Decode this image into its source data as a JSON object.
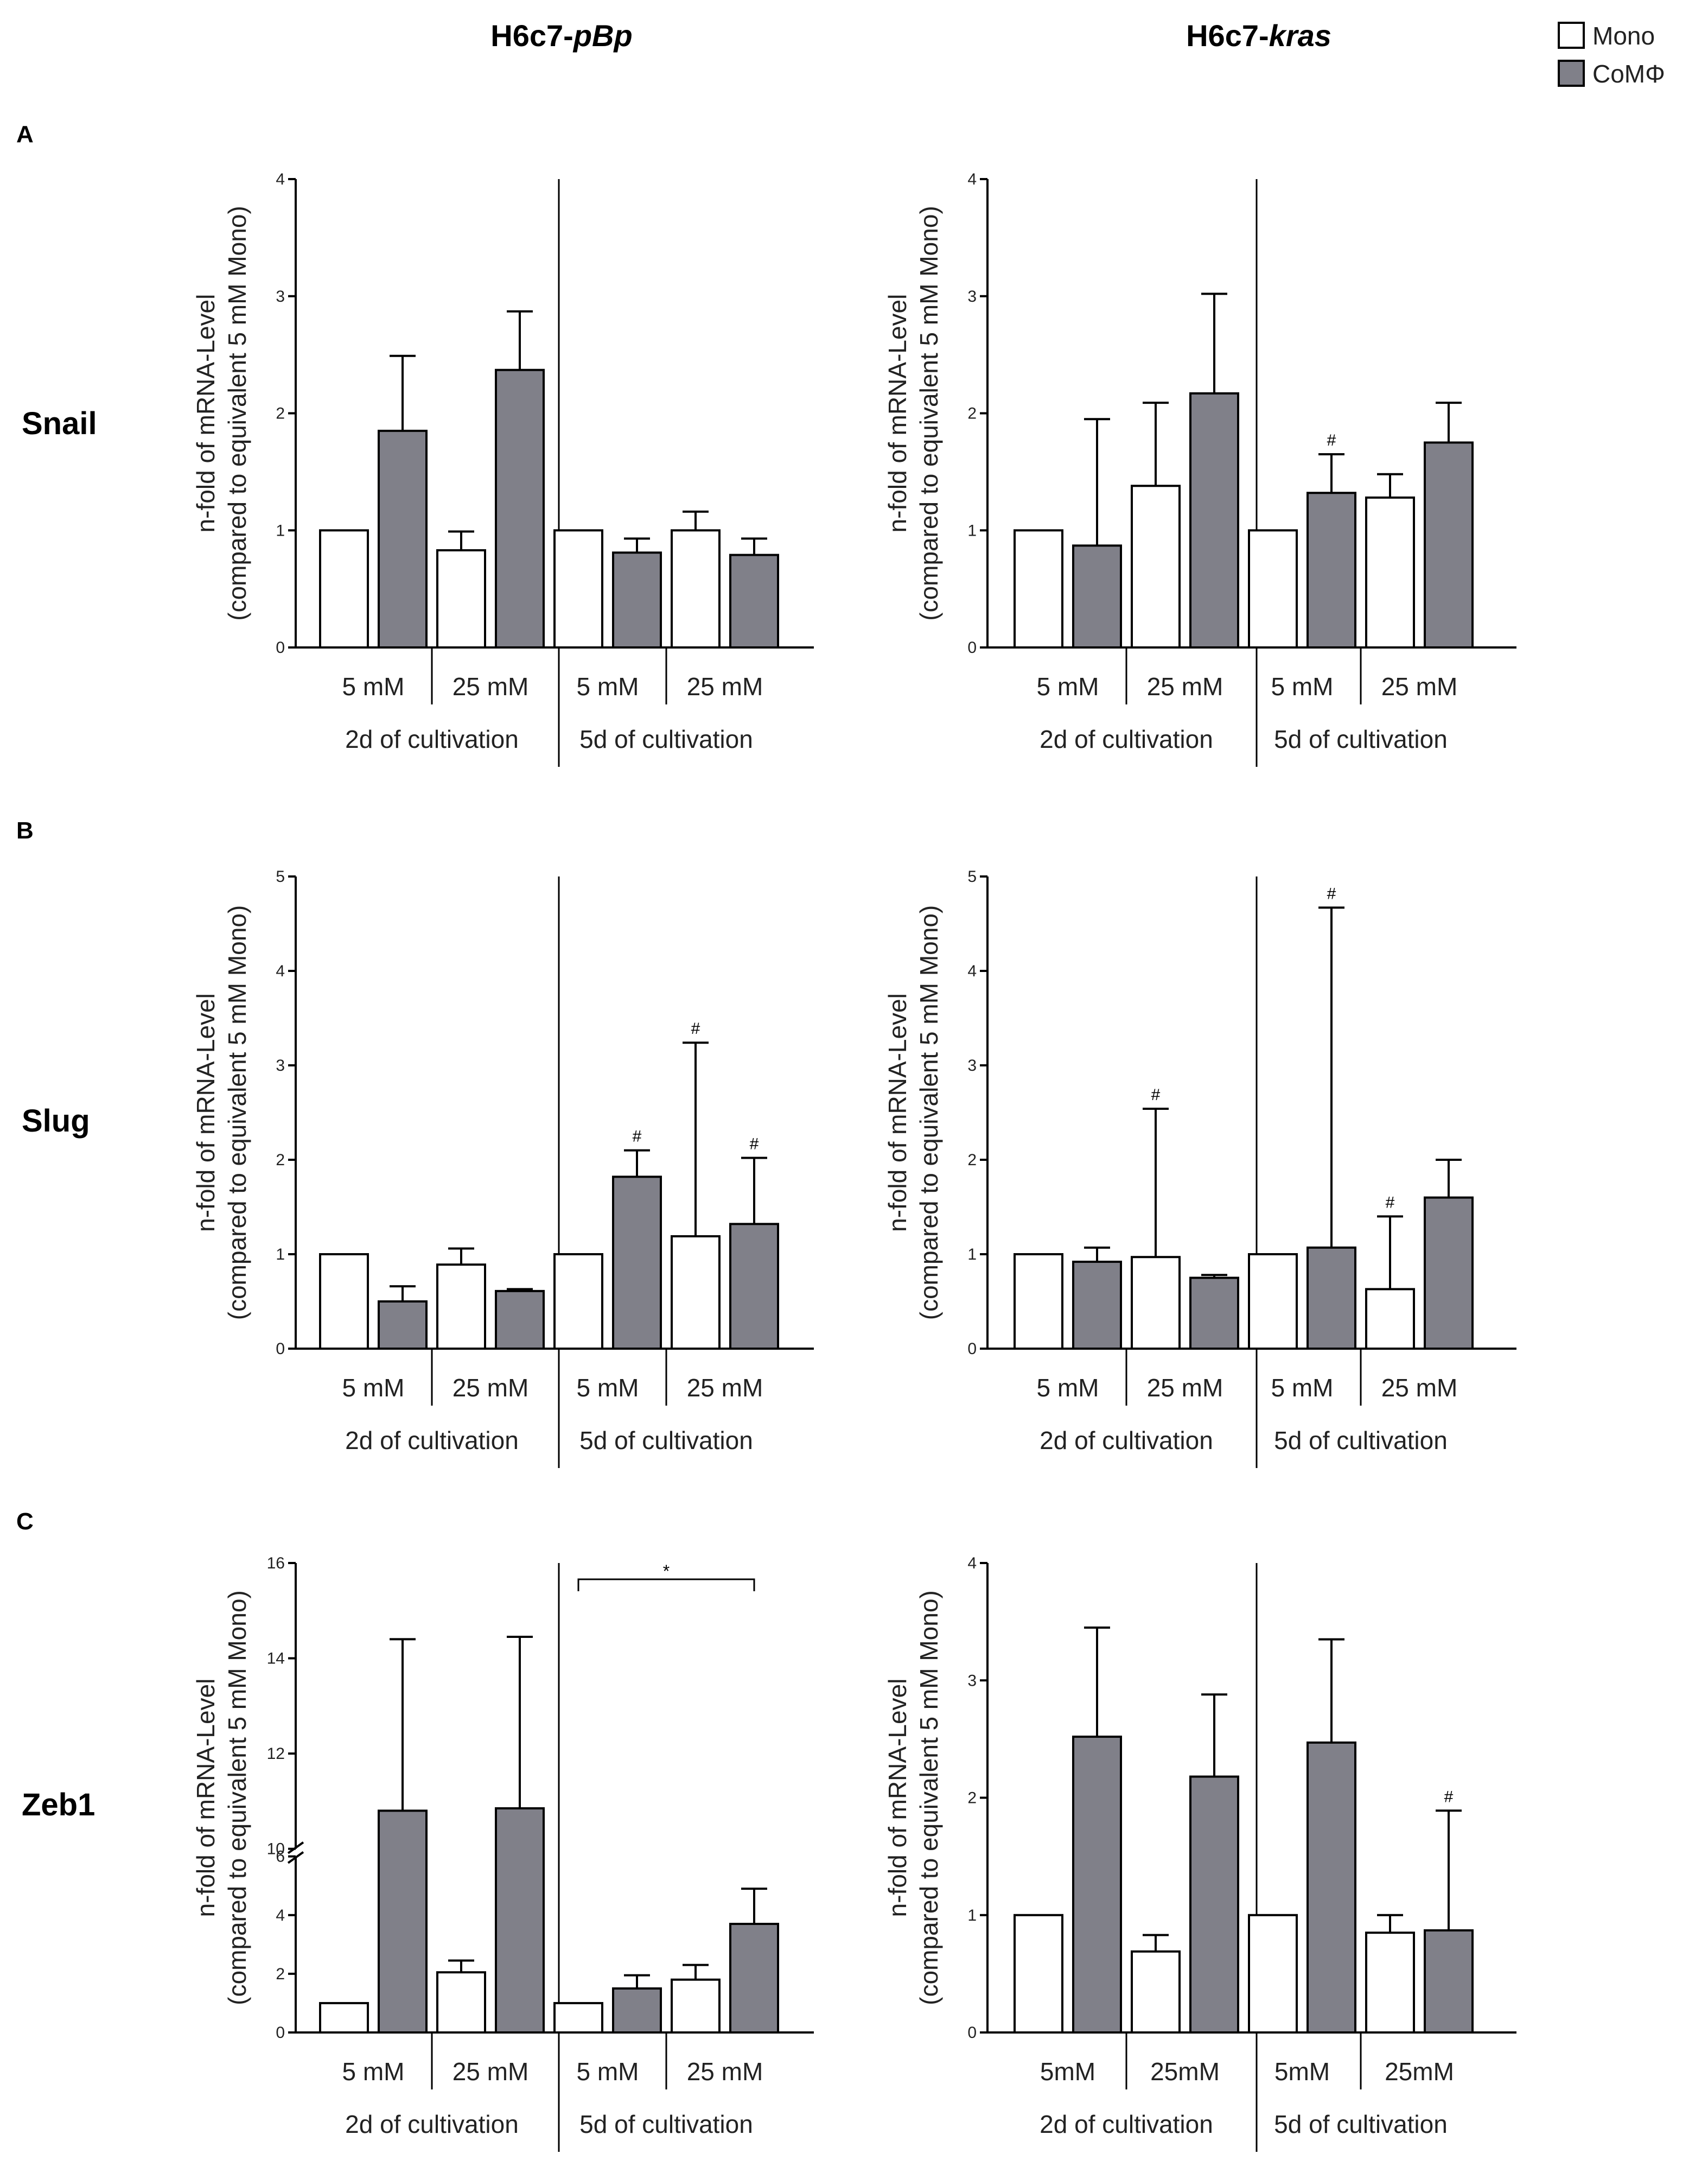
{
  "figure": {
    "col_headers": [
      {
        "base": "H6c7-",
        "italic": "pBp"
      },
      {
        "base": "H6c7-",
        "italic": "kras"
      }
    ],
    "legend": [
      {
        "label": "Mono",
        "color": "#ffffff"
      },
      {
        "label": "CoMΦ",
        "color": "#808089"
      }
    ],
    "rows": [
      {
        "letter": "A",
        "gene": "Snail"
      },
      {
        "letter": "B",
        "gene": "Slug"
      },
      {
        "letter": "C",
        "gene": "Zeb1"
      }
    ],
    "ylabel_line1": "n-fold of mRNA-Level",
    "ylabel_line2": "(compared to equivalent 5 mM Mono)",
    "colors": {
      "mono": "#ffffff",
      "com": "#808089",
      "axis": "#000000"
    }
  },
  "chart_data": [
    {
      "type": "bar",
      "row": 0,
      "col": 0,
      "title": "Snail - H6c7-pBp",
      "ylim": [
        0,
        4
      ],
      "yticks": [
        0,
        1,
        2,
        3,
        4
      ],
      "concentrations": [
        "5 mM",
        "25 mM",
        "5 mM",
        "25 mM"
      ],
      "groups": [
        "2d of cultivation",
        "5d of cultivation"
      ],
      "series": [
        {
          "name": "Mono",
          "values": [
            1.0,
            0.83,
            1.0,
            1.0
          ],
          "errors": [
            0,
            0.16,
            0,
            0.16
          ]
        },
        {
          "name": "CoMΦ",
          "values": [
            1.85,
            2.37,
            0.81,
            0.79
          ],
          "errors": [
            0.64,
            0.5,
            0.12,
            0.14
          ]
        }
      ],
      "annotations": []
    },
    {
      "type": "bar",
      "row": 0,
      "col": 1,
      "title": "Snail - H6c7-kras",
      "ylim": [
        0,
        4
      ],
      "yticks": [
        0,
        1,
        2,
        3,
        4
      ],
      "concentrations": [
        "5 mM",
        "25 mM",
        "5 mM",
        "25 mM"
      ],
      "groups": [
        "2d of cultivation",
        "5d of cultivation"
      ],
      "series": [
        {
          "name": "Mono",
          "values": [
            1.0,
            1.38,
            1.0,
            1.28
          ],
          "errors": [
            0,
            0.71,
            0,
            0.2
          ]
        },
        {
          "name": "CoMΦ",
          "values": [
            0.87,
            2.17,
            1.32,
            1.75
          ],
          "errors": [
            1.08,
            0.85,
            0.33,
            0.34
          ]
        }
      ],
      "annotations": [
        {
          "text": "#",
          "bar": 5
        }
      ]
    },
    {
      "type": "bar",
      "row": 1,
      "col": 0,
      "title": "Slug - H6c7-pBp",
      "ylim": [
        0,
        5
      ],
      "yticks": [
        0,
        1,
        2,
        3,
        4,
        5
      ],
      "concentrations": [
        "5 mM",
        "25 mM",
        "5 mM",
        "25 mM"
      ],
      "groups": [
        "2d of cultivation",
        "5d of cultivation"
      ],
      "series": [
        {
          "name": "Mono",
          "values": [
            1.0,
            0.89,
            1.0,
            1.19
          ],
          "errors": [
            0,
            0.17,
            0,
            2.05
          ]
        },
        {
          "name": "CoMΦ",
          "values": [
            0.5,
            0.61,
            1.82,
            1.32
          ],
          "errors": [
            0.16,
            0.02,
            0.28,
            0.7
          ]
        }
      ],
      "annotations": [
        {
          "text": "#",
          "bar": 5
        },
        {
          "text": "#",
          "bar": 6
        },
        {
          "text": "#",
          "bar": 7
        }
      ]
    },
    {
      "type": "bar",
      "row": 1,
      "col": 1,
      "title": "Slug - H6c7-kras",
      "ylim": [
        0,
        5
      ],
      "yticks": [
        0,
        1,
        2,
        3,
        4,
        5
      ],
      "concentrations": [
        "5 mM",
        "25 mM",
        "5 mM",
        "25 mM"
      ],
      "groups": [
        "2d of cultivation",
        "5d of cultivation"
      ],
      "series": [
        {
          "name": "Mono",
          "values": [
            1.0,
            0.97,
            1.0,
            0.63
          ],
          "errors": [
            0,
            1.57,
            0,
            0.77
          ]
        },
        {
          "name": "CoMΦ",
          "values": [
            0.92,
            0.75,
            1.07,
            1.6
          ],
          "errors": [
            0.15,
            0.03,
            3.6,
            0.4
          ]
        }
      ],
      "annotations": [
        {
          "text": "#",
          "bar": 2
        },
        {
          "text": "#",
          "bar": 5
        },
        {
          "text": "#",
          "bar": 6
        }
      ]
    },
    {
      "type": "bar",
      "row": 2,
      "col": 0,
      "title": "Zeb1 - H6c7-pBp",
      "broken_axis": true,
      "yticks": [
        0,
        2,
        4,
        6,
        10,
        12,
        14,
        16
      ],
      "lower_range": [
        0,
        6
      ],
      "upper_range": [
        10,
        16
      ],
      "concentrations": [
        "5 mM",
        "25 mM",
        "5 mM",
        "25 mM"
      ],
      "groups": [
        "2d of cultivation",
        "5d of cultivation"
      ],
      "series": [
        {
          "name": "Mono",
          "values": [
            1.0,
            2.05,
            1.0,
            1.8
          ],
          "errors": [
            0,
            0.4,
            0,
            0.5
          ]
        },
        {
          "name": "CoMΦ",
          "values": [
            10.8,
            10.85,
            1.5,
            3.7
          ],
          "errors": [
            3.6,
            3.6,
            0.45,
            1.2
          ]
        }
      ],
      "annotations": [
        {
          "text": "*",
          "bracket": [
            4,
            7
          ]
        }
      ]
    },
    {
      "type": "bar",
      "row": 2,
      "col": 1,
      "title": "Zeb1 - H6c7-kras",
      "ylim": [
        0,
        4
      ],
      "yticks": [
        0,
        1,
        2,
        3,
        4
      ],
      "concentrations": [
        "5mM",
        "25mM",
        "5mM",
        "25mM"
      ],
      "groups": [
        "2d of cultivation",
        "5d of cultivation"
      ],
      "series": [
        {
          "name": "Mono",
          "values": [
            1.0,
            0.69,
            1.0,
            0.85
          ],
          "errors": [
            0,
            0.14,
            0,
            0.15
          ]
        },
        {
          "name": "CoMΦ",
          "values": [
            2.52,
            2.18,
            2.47,
            0.87
          ],
          "errors": [
            0.93,
            0.7,
            0.88,
            1.02
          ]
        }
      ],
      "annotations": [
        {
          "text": "#",
          "bar": 7
        }
      ]
    }
  ]
}
